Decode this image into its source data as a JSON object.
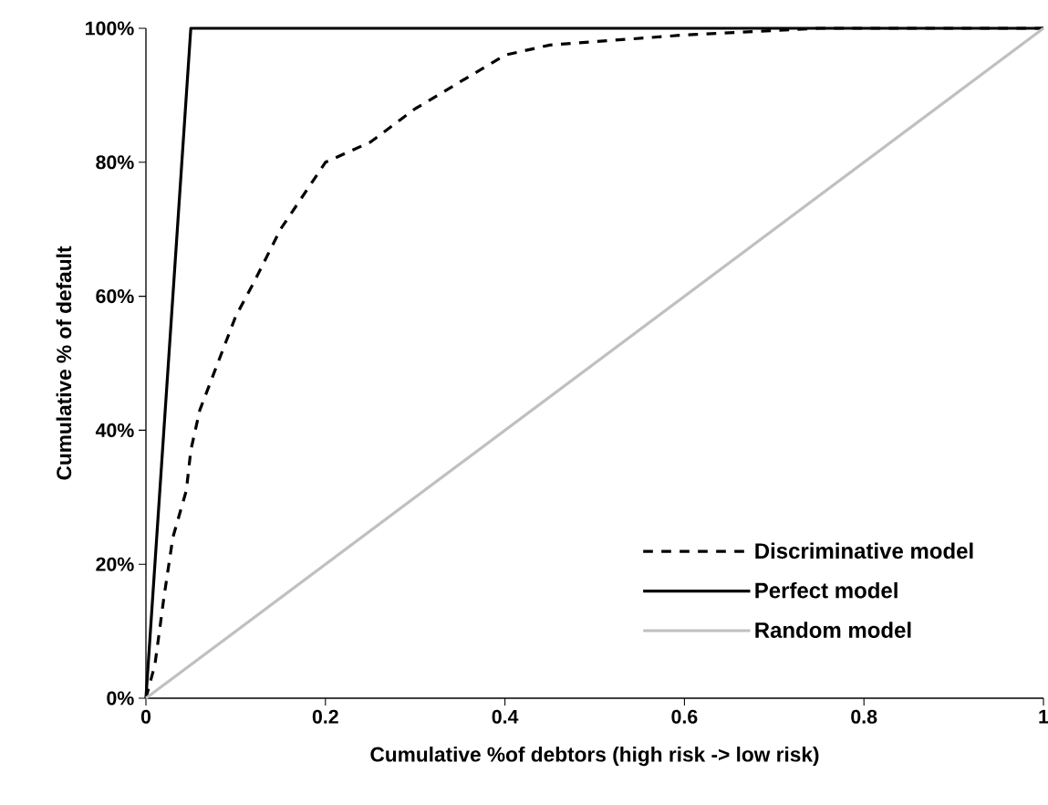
{
  "chart_data": {
    "type": "line",
    "xlabel": "Cumulative %of debtors (high risk -> low risk)",
    "ylabel": "Cumulative % of default",
    "xlim": [
      0,
      1
    ],
    "ylim": [
      0,
      100
    ],
    "xticks": [
      0,
      0.2,
      0.4,
      0.6,
      0.8,
      1
    ],
    "yticks": [
      {
        "value": 0,
        "label": "0%"
      },
      {
        "value": 20,
        "label": "20%"
      },
      {
        "value": 40,
        "label": "40%"
      },
      {
        "value": 60,
        "label": "60%"
      },
      {
        "value": 80,
        "label": "80%"
      },
      {
        "value": 100,
        "label": "100%"
      }
    ],
    "legend": "bottom right",
    "grid": false,
    "marker": "none",
    "series": [
      {
        "name": "Discriminative model",
        "color": "#000000",
        "line_style": "dashed",
        "x": [
          0,
          0.01,
          0.02,
          0.03,
          0.045,
          0.05,
          0.06,
          0.08,
          0.1,
          0.12,
          0.15,
          0.18,
          0.2,
          0.25,
          0.3,
          0.35,
          0.4,
          0.45,
          0.5,
          0.6,
          0.75,
          1
        ],
        "values": [
          0,
          5,
          15,
          24,
          31,
          37,
          43,
          50,
          57,
          62,
          70,
          76,
          80,
          83,
          88,
          92,
          96,
          97.5,
          98,
          99,
          100,
          100
        ]
      },
      {
        "name": "Perfect model",
        "color": "#000000",
        "line_style": "solid",
        "x": [
          0,
          0.05,
          1
        ],
        "values": [
          0,
          100,
          100
        ]
      },
      {
        "name": "Random model",
        "color": "#c0c0c0",
        "line_style": "solid",
        "x": [
          0,
          1
        ],
        "values": [
          0,
          100
        ]
      }
    ]
  }
}
